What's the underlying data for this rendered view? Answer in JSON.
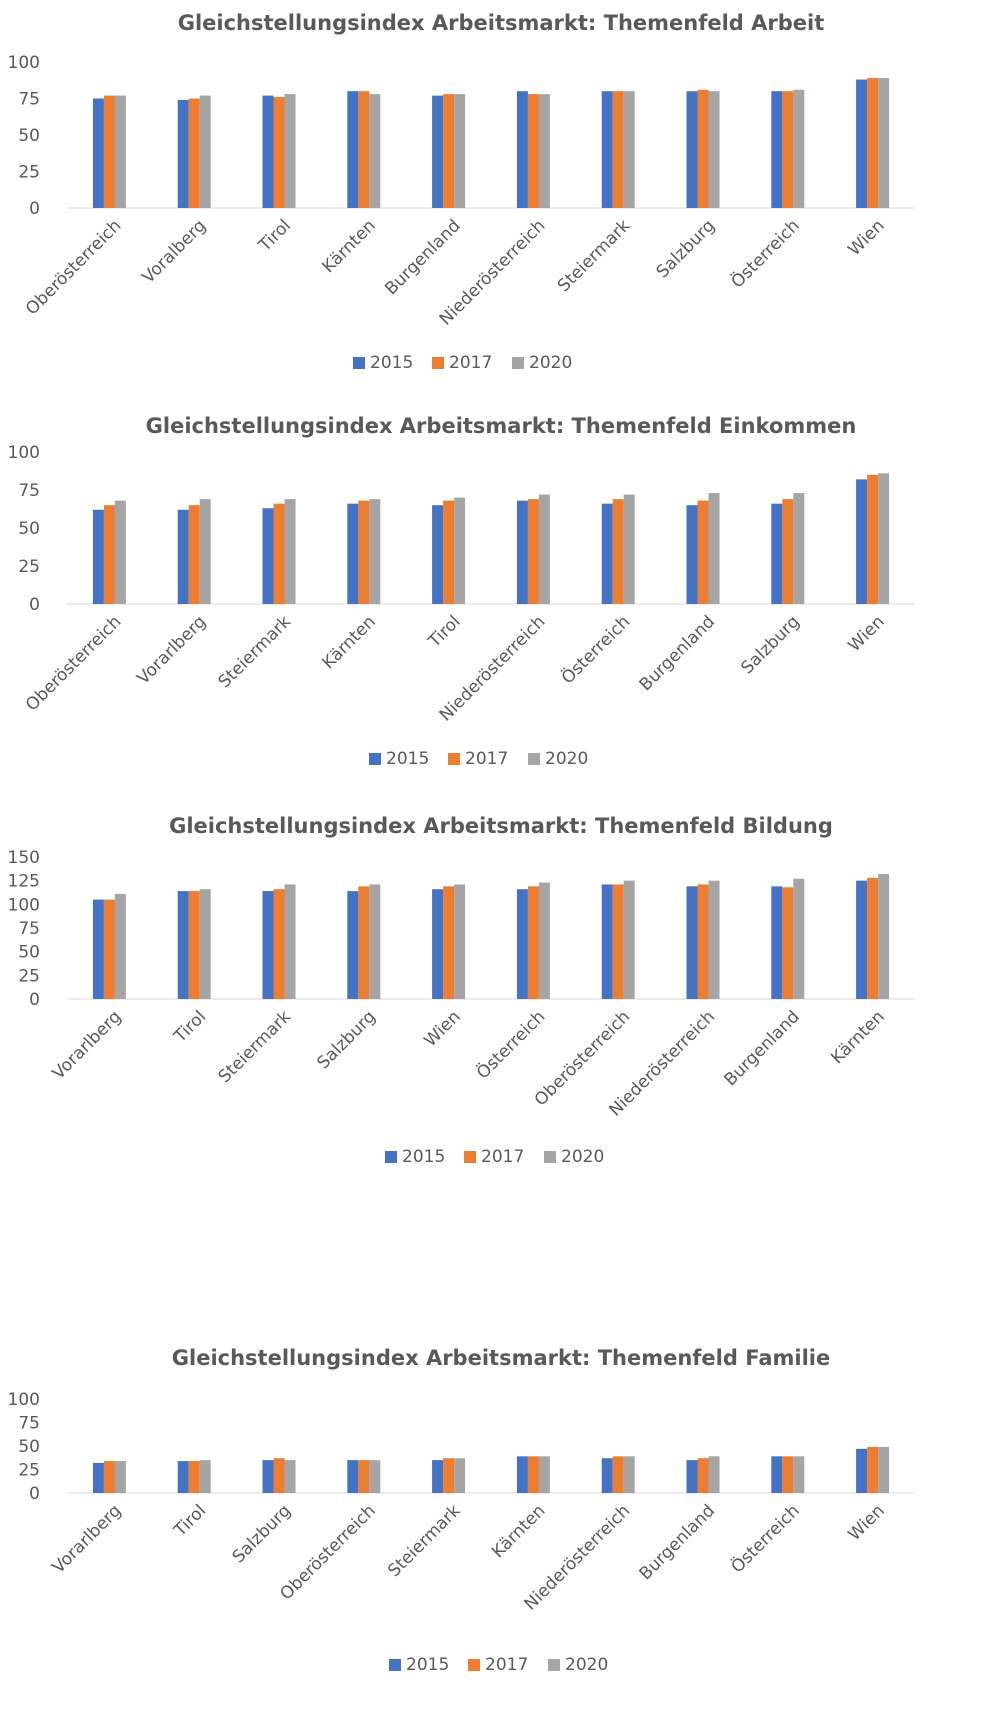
{
  "colors": {
    "2015": "#4472C4",
    "2017": "#ED7D31",
    "2020": "#A5A5A5",
    "text": "#595959",
    "grid": "#D9D9D9"
  },
  "chart_data": [
    {
      "type": "bar",
      "title": "Gleichstellungsindex Arbeitsmarkt: Themenfeld Arbeit",
      "categories": [
        "Oberösterreich",
        "Voralberg",
        "Tirol",
        "Kärnten",
        "Burgenland",
        "Niederösterreich",
        "Steiermark",
        "Salzburg",
        "Österreich",
        "Wien"
      ],
      "series": [
        {
          "name": "2015",
          "values": [
            75,
            74,
            77,
            80,
            77,
            80,
            80,
            80,
            80,
            88
          ]
        },
        {
          "name": "2017",
          "values": [
            77,
            75,
            76,
            80,
            78,
            78,
            80,
            81,
            80,
            89
          ]
        },
        {
          "name": "2020",
          "values": [
            77,
            77,
            78,
            78,
            78,
            78,
            80,
            80,
            81,
            89
          ]
        }
      ],
      "ylim": [
        0,
        100
      ],
      "yticks": [
        0,
        25,
        50,
        75,
        100
      ],
      "legend": "bottom",
      "grid": false
    },
    {
      "type": "bar",
      "title": "Gleichstellungsindex Arbeitsmarkt: Themenfeld Einkommen",
      "categories": [
        "Oberösterreich",
        "Vorarlberg",
        "Steiermark",
        "Kärnten",
        "Tirol",
        "Niederösterreich",
        "Österreich",
        "Burgenland",
        "Salzburg",
        "Wien"
      ],
      "series": [
        {
          "name": "2015",
          "values": [
            62,
            62,
            63,
            66,
            65,
            68,
            66,
            65,
            66,
            82
          ]
        },
        {
          "name": "2017",
          "values": [
            65,
            65,
            66,
            68,
            68,
            69,
            69,
            68,
            69,
            85
          ]
        },
        {
          "name": "2020",
          "values": [
            68,
            69,
            69,
            69,
            70,
            72,
            72,
            73,
            73,
            86
          ]
        }
      ],
      "ylim": [
        0,
        100
      ],
      "yticks": [
        0,
        25,
        50,
        75,
        100
      ],
      "legend": "bottom",
      "grid": false
    },
    {
      "type": "bar",
      "title": "Gleichstellungsindex Arbeitsmarkt: Themenfeld Bildung",
      "categories": [
        "Vorarlberg",
        "Tirol",
        "Steiermark",
        "Salzburg",
        "Wien",
        "Österreich",
        "Oberösterreich",
        "Niederösterreich",
        "Burgenland",
        "Kärnten"
      ],
      "series": [
        {
          "name": "2015",
          "values": [
            105,
            114,
            114,
            114,
            116,
            116,
            121,
            119,
            119,
            125
          ]
        },
        {
          "name": "2017",
          "values": [
            105,
            114,
            116,
            119,
            119,
            119,
            121,
            121,
            118,
            128
          ]
        },
        {
          "name": "2020",
          "values": [
            111,
            116,
            121,
            121,
            121,
            123,
            125,
            125,
            127,
            132
          ]
        }
      ],
      "ylim": [
        0,
        150
      ],
      "yticks": [
        0,
        25,
        50,
        75,
        100,
        125,
        150
      ],
      "legend": "bottom",
      "grid": false
    },
    {
      "type": "bar",
      "title": "Gleichstellungsindex Arbeitsmarkt: Themenfeld Familie",
      "categories": [
        "Vorarlberg",
        "Tirol",
        "Salzburg",
        "Oberösterreich",
        "Steiermark",
        "Kärnten",
        "Niederösterreich",
        "Burgenland",
        "Österreich",
        "Wien"
      ],
      "series": [
        {
          "name": "2015",
          "values": [
            32,
            34,
            35,
            35,
            35,
            39,
            37,
            35,
            39,
            47
          ]
        },
        {
          "name": "2017",
          "values": [
            34,
            34,
            37,
            35,
            37,
            39,
            39,
            37,
            39,
            49
          ]
        },
        {
          "name": "2020",
          "values": [
            34,
            35,
            35,
            35,
            37,
            39,
            39,
            39,
            39,
            49
          ]
        }
      ],
      "ylim": [
        0,
        100
      ],
      "yticks": [
        0,
        25,
        50,
        75,
        100
      ],
      "legend": "bottom",
      "grid": false
    }
  ]
}
